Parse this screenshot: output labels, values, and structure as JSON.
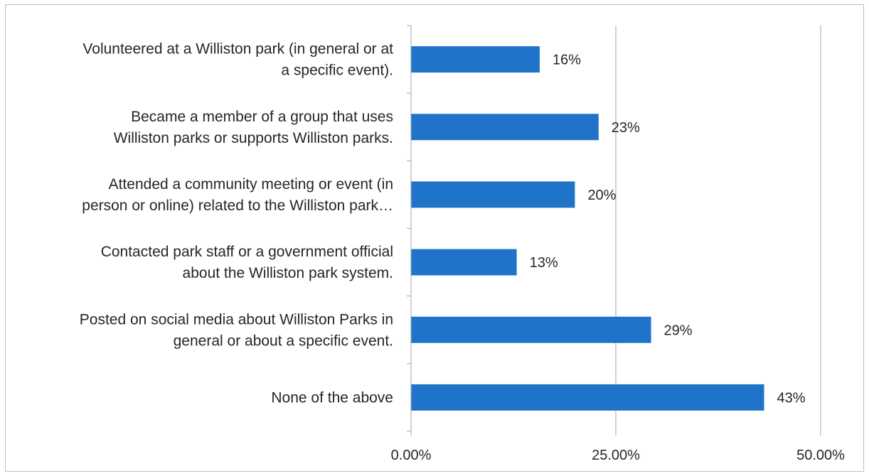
{
  "chart_data": {
    "type": "bar",
    "orientation": "horizontal",
    "categories": [
      [
        "Volunteered at a Williston park (in general or at",
        "a specific event)."
      ],
      [
        "Became a member of a group that uses",
        "Williston parks or supports Williston parks."
      ],
      [
        "Attended a community meeting or event (in",
        "person or online) related to the Williston park…"
      ],
      [
        "Contacted park staff or a government official",
        "about the Williston park system."
      ],
      [
        "Posted on social media about Williston Parks in",
        "general or about a specific event."
      ],
      [
        "None of the above"
      ]
    ],
    "values": [
      15.7,
      22.9,
      20.0,
      12.9,
      29.3,
      43.1
    ],
    "data_labels": [
      "16%",
      "23%",
      "20%",
      "13%",
      "29%",
      "43%"
    ],
    "xlim": [
      0,
      50
    ],
    "x_ticks": [
      0,
      25,
      50
    ],
    "x_tick_labels": [
      "0.00%",
      "25.00%",
      "50.00%"
    ],
    "bar_color": "#1f73c8",
    "grid": true,
    "legend": "none",
    "title": "",
    "xlabel": "",
    "ylabel": ""
  }
}
